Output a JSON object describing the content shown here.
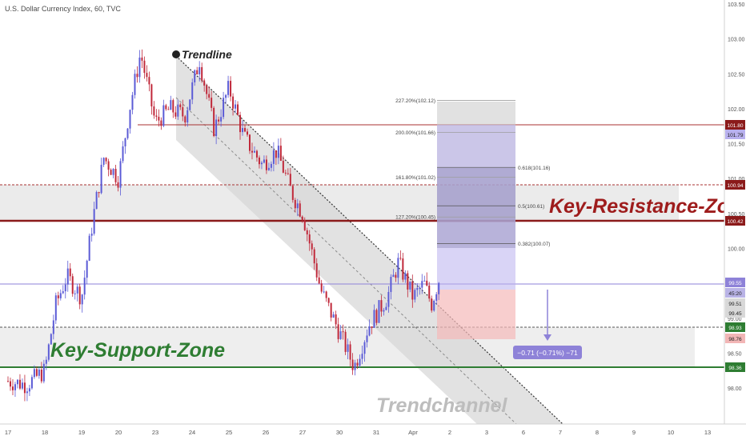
{
  "header": {
    "title": "U.S. Dollar Currency Index, 60, TVC"
  },
  "colors": {
    "bull": "#5b5bd6",
    "bear": "#c0283a",
    "resistance": "#8b1a1a",
    "support": "#2e7d32",
    "current": "#8e82d8",
    "fib": "#9e9e9e"
  },
  "chart_data": {
    "type": "candlestick",
    "ylim": [
      97.6,
      103.5
    ],
    "y_ticks": [
      "103.50",
      "103.00",
      "102.50",
      "102.00",
      "101.50",
      "101.00",
      "100.50",
      "100.00",
      "99.50",
      "99.00",
      "98.50",
      "98.00"
    ],
    "x_ticks": [
      "17",
      "18",
      "19",
      "20",
      "23",
      "24",
      "25",
      "26",
      "27",
      "30",
      "31",
      "Apr",
      "2",
      "3",
      "6",
      "7",
      "8",
      "9",
      "10",
      "13"
    ],
    "price_path": [
      [
        0,
        98.1
      ],
      [
        0.5,
        98.05
      ],
      [
        1,
        98.25
      ],
      [
        1.3,
        99.2
      ],
      [
        1.6,
        99.6
      ],
      [
        2.0,
        99.3
      ],
      [
        2.3,
        100.4
      ],
      [
        2.6,
        101.3
      ],
      [
        3.0,
        101.0
      ],
      [
        3.3,
        102.0
      ],
      [
        3.6,
        102.8
      ],
      [
        4.0,
        101.8
      ],
      [
        4.4,
        102.0
      ],
      [
        4.8,
        101.9
      ],
      [
        5.2,
        102.7
      ],
      [
        5.6,
        101.7
      ],
      [
        6.0,
        102.3
      ],
      [
        6.4,
        101.6
      ],
      [
        6.9,
        101.2
      ],
      [
        7.3,
        101.4
      ],
      [
        7.7,
        100.8
      ],
      [
        8.0,
        100.5
      ],
      [
        8.5,
        99.4
      ],
      [
        9.0,
        98.8
      ],
      [
        9.4,
        98.3
      ],
      [
        9.8,
        98.9
      ],
      [
        10.3,
        99.3
      ],
      [
        10.6,
        99.8
      ],
      [
        11.0,
        99.3
      ],
      [
        11.3,
        99.5
      ],
      [
        11.5,
        99.2
      ],
      [
        11.7,
        99.55
      ]
    ],
    "annotations": [
      {
        "id": "trendline",
        "text": "Trendline"
      },
      {
        "id": "resistance",
        "text": "Key-Resistance-Zone"
      },
      {
        "id": "support",
        "text": "Key-Support-Zone"
      },
      {
        "id": "channel",
        "text": "Trendchannel"
      }
    ],
    "levels": [
      {
        "price": 101.8,
        "label": "101.80",
        "role": "resistance-line"
      },
      {
        "price": 101.79,
        "label": "101.79",
        "role": "fib-box"
      },
      {
        "price": 100.94,
        "label": "100.94",
        "role": "zone-top"
      },
      {
        "price": 100.42,
        "label": "100.42",
        "role": "resistance-line"
      },
      {
        "price": 99.55,
        "label": "99.55",
        "role": "current"
      },
      {
        "price": 99.4,
        "label": "45:20",
        "role": "countdown"
      },
      {
        "price": 99.28,
        "label": "99.51",
        "role": "ohlc"
      },
      {
        "price": 99.16,
        "label": "99.45",
        "role": "ohlc"
      },
      {
        "price": 98.93,
        "label": "98.93",
        "role": "support-line"
      },
      {
        "price": 98.76,
        "label": "98.76",
        "role": "stop"
      },
      {
        "price": 98.36,
        "label": "98.36",
        "role": "support-line"
      }
    ],
    "fib_extension": [
      {
        "label": "227.20%(102.12)",
        "price": 102.12
      },
      {
        "label": "200.00%(101.66)",
        "price": 101.66
      },
      {
        "label": "161.80%(101.02)",
        "price": 101.02
      },
      {
        "label": "127.20%(100.45)",
        "price": 100.45
      }
    ],
    "fib_retracement": [
      {
        "label": "0.618(101.16)",
        "price": 101.16
      },
      {
        "label": "0.5(100.61)",
        "price": 100.61
      },
      {
        "label": "0.382(100.07)",
        "price": 100.07
      }
    ],
    "projection": {
      "label": "−0.71 (−0.71%) −71",
      "from": 99.55,
      "to": 98.84
    }
  }
}
